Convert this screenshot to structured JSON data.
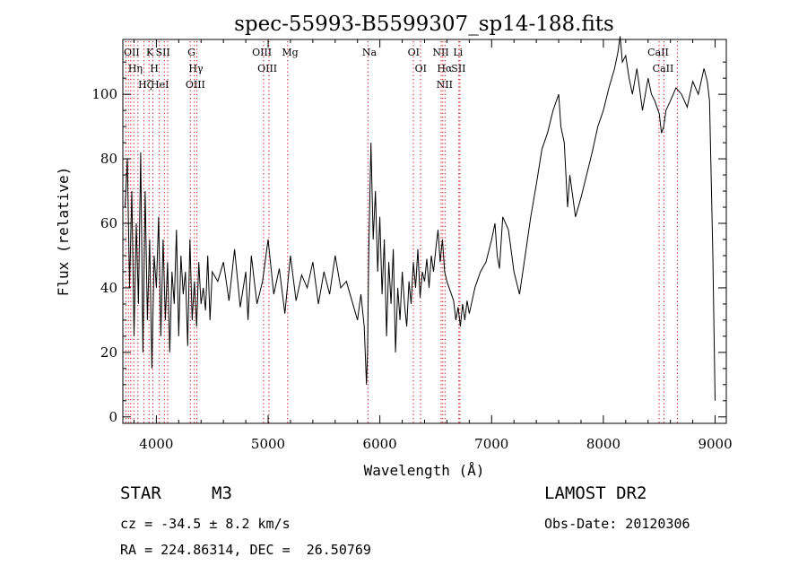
{
  "chart_data": {
    "type": "line",
    "title": "spec-55993-B5599307_sp14-188.fits",
    "xlabel": "Wavelength (Å)",
    "ylabel": "Flux (relative)",
    "xlim": [
      3700,
      9100
    ],
    "ylim": [
      -2,
      117
    ],
    "x_ticks": [
      4000,
      5000,
      6000,
      7000,
      8000,
      9000
    ],
    "y_ticks": [
      0,
      20,
      40,
      60,
      80,
      100
    ],
    "grid": false,
    "line_color": "#000000",
    "marker_color": "#cc0000",
    "series": [
      {
        "x": [
          3720,
          3740,
          3760,
          3780,
          3800,
          3820,
          3840,
          3860,
          3880,
          3900,
          3920,
          3940,
          3960,
          3980,
          4000,
          4020,
          4040,
          4060,
          4080,
          4100,
          4120,
          4140,
          4160,
          4180,
          4200,
          4220,
          4240,
          4260,
          4280,
          4300,
          4320,
          4340,
          4360,
          4380,
          4400,
          4420,
          4440,
          4460,
          4480,
          4500,
          4550,
          4600,
          4650,
          4700,
          4750,
          4800,
          4820,
          4850,
          4900,
          4950,
          5000,
          5050,
          5100,
          5150,
          5200,
          5250,
          5300,
          5350,
          5400,
          5450,
          5500,
          5550,
          5600,
          5650,
          5700,
          5750,
          5800,
          5830,
          5860,
          5880,
          5890,
          5900,
          5920,
          5940,
          5960,
          5980,
          6000,
          6020,
          6040,
          6060,
          6080,
          6100,
          6120,
          6140,
          6160,
          6180,
          6200,
          6220,
          6240,
          6260,
          6280,
          6300,
          6320,
          6340,
          6360,
          6380,
          6400,
          6420,
          6440,
          6460,
          6480,
          6500,
          6520,
          6540,
          6560,
          6580,
          6600,
          6620,
          6640,
          6660,
          6680,
          6700,
          6720,
          6740,
          6760,
          6780,
          6800,
          6850,
          6900,
          6950,
          7000,
          7030,
          7050,
          7070,
          7100,
          7150,
          7200,
          7250,
          7300,
          7350,
          7400,
          7450,
          7500,
          7550,
          7600,
          7620,
          7650,
          7680,
          7700,
          7750,
          7800,
          7850,
          7900,
          7950,
          8000,
          8050,
          8100,
          8130,
          8150,
          8170,
          8200,
          8230,
          8260,
          8300,
          8350,
          8400,
          8430,
          8460,
          8500,
          8520,
          8540,
          8560,
          8600,
          8650,
          8700,
          8750,
          8800,
          8850,
          8900,
          8930,
          8950,
          8980,
          9000
        ],
        "y": [
          65,
          80,
          40,
          70,
          25,
          60,
          35,
          82,
          20,
          70,
          30,
          55,
          15,
          50,
          40,
          62,
          25,
          55,
          30,
          48,
          20,
          45,
          35,
          58,
          25,
          50,
          38,
          45,
          22,
          55,
          30,
          42,
          28,
          48,
          35,
          40,
          33,
          50,
          30,
          45,
          42,
          48,
          36,
          52,
          34,
          45,
          30,
          50,
          35,
          42,
          55,
          38,
          46,
          32,
          50,
          36,
          44,
          40,
          48,
          35,
          45,
          38,
          50,
          40,
          42,
          36,
          30,
          38,
          28,
          10,
          20,
          50,
          85,
          55,
          70,
          45,
          62,
          38,
          55,
          25,
          48,
          35,
          52,
          20,
          40,
          30,
          45,
          35,
          28,
          42,
          35,
          48,
          40,
          52,
          37,
          45,
          42,
          49,
          40,
          50,
          45,
          52,
          58,
          48,
          55,
          45,
          42,
          40,
          38,
          36,
          30,
          34,
          28,
          35,
          30,
          36,
          32,
          40,
          45,
          48,
          55,
          60,
          50,
          46,
          62,
          58,
          45,
          38,
          50,
          62,
          72,
          83,
          88,
          95,
          100,
          90,
          85,
          65,
          75,
          62,
          68,
          75,
          82,
          90,
          95,
          102,
          108,
          113,
          118,
          110,
          112,
          105,
          100,
          108,
          95,
          105,
          100,
          98,
          94,
          88,
          90,
          95,
          98,
          102,
          100,
          96,
          104,
          100,
          108,
          104,
          98,
          50,
          5
        ]
      }
    ],
    "lines": [
      {
        "x": 3727,
        "labels": [
          "OII"
        ]
      },
      {
        "x": 3750,
        "labels": []
      },
      {
        "x": 3771,
        "labels": []
      },
      {
        "x": 3798,
        "labels": [
          "Hη"
        ]
      },
      {
        "x": 3835,
        "labels": []
      },
      {
        "x": 3889,
        "labels": [
          "Hζ"
        ]
      },
      {
        "x": 3934,
        "labels": [
          "K"
        ]
      },
      {
        "x": 3968,
        "labels": [
          "H"
        ]
      },
      {
        "x": 4026,
        "labels": [
          "HeI"
        ]
      },
      {
        "x": 4071,
        "labels": [
          "SII"
        ]
      },
      {
        "x": 4101,
        "labels": []
      },
      {
        "x": 4304,
        "labels": [
          "G"
        ]
      },
      {
        "x": 4340,
        "labels": [
          "Hγ"
        ]
      },
      {
        "x": 4363,
        "labels": [
          "OIII"
        ]
      },
      {
        "x": 4959,
        "labels": [
          "OIII"
        ]
      },
      {
        "x": 5007,
        "labels": [
          "OIII"
        ]
      },
      {
        "x": 5175,
        "labels": [
          "Mg"
        ]
      },
      {
        "x": 5893,
        "labels": [
          "Na"
        ]
      },
      {
        "x": 6300,
        "labels": [
          "OI"
        ]
      },
      {
        "x": 6364,
        "labels": [
          "OI"
        ]
      },
      {
        "x": 6548,
        "labels": [
          "NII"
        ]
      },
      {
        "x": 6563,
        "labels": [
          "Hα"
        ]
      },
      {
        "x": 6583,
        "labels": [
          "NII"
        ]
      },
      {
        "x": 6707,
        "labels": [
          "Li"
        ]
      },
      {
        "x": 6716,
        "labels": [
          "SII"
        ]
      },
      {
        "x": 8498,
        "labels": [
          "CaII"
        ]
      },
      {
        "x": 8542,
        "labels": [
          "CaII"
        ]
      },
      {
        "x": 8662,
        "labels": []
      }
    ]
  },
  "info": {
    "star_label": "STAR",
    "subclass": "M3",
    "survey": "LAMOST DR2",
    "cz": "cz = -34.5 ± 8.2 km/s",
    "obs_date": "Obs-Date: 20120306",
    "coords": "RA = 224.86314, DEC =  26.50769"
  }
}
